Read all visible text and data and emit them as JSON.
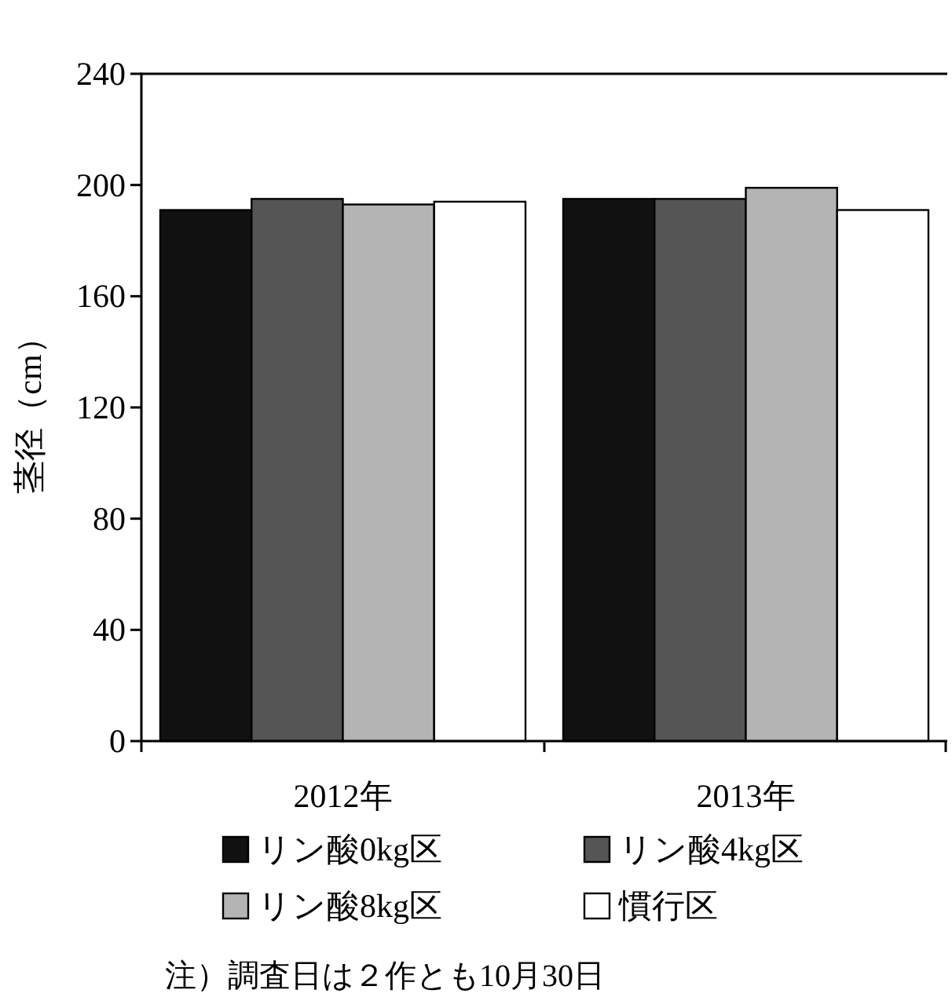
{
  "chart_data": {
    "type": "bar",
    "ylabel": "茎径（cm）",
    "categories": [
      "2012年",
      "2013年"
    ],
    "series": [
      {
        "name": "リン酸0kg区",
        "color": "#111111",
        "values": [
          191,
          195
        ]
      },
      {
        "name": "リン酸4kg区",
        "color": "#555555",
        "values": [
          195,
          195
        ]
      },
      {
        "name": "リン酸8kg区",
        "color": "#b4b4b4",
        "values": [
          193,
          199
        ]
      },
      {
        "name": "慣行区",
        "color": "#ffffff",
        "values": [
          194,
          191
        ]
      }
    ],
    "ylim": [
      0,
      240
    ],
    "yticks": [
      0,
      40,
      80,
      120,
      160,
      200,
      240
    ],
    "legend": "bottom",
    "annotations": [
      "注）調査日は２作とも10月30日"
    ]
  }
}
